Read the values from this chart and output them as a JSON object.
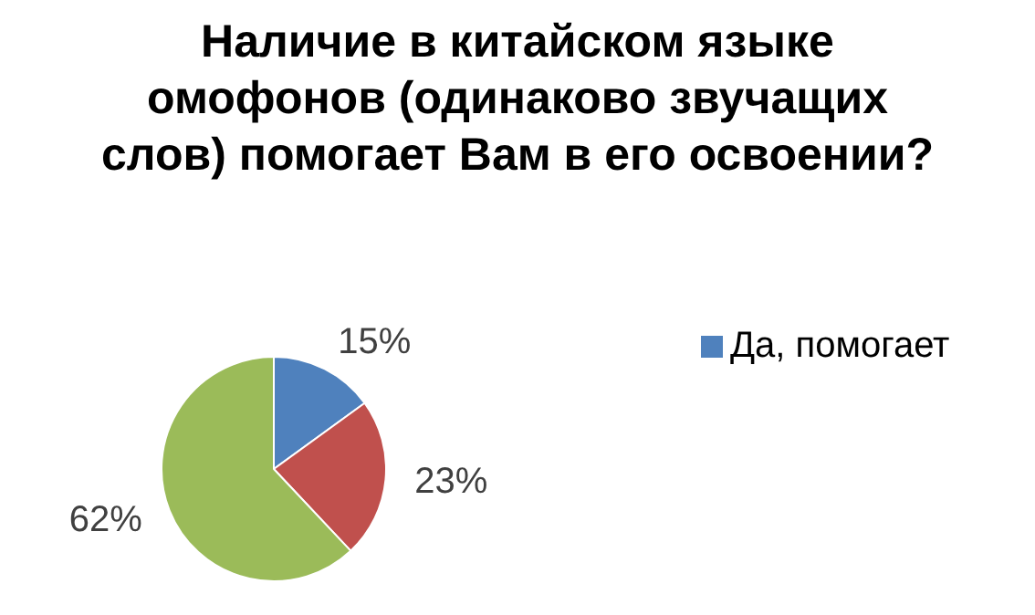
{
  "chart_data": {
    "type": "pie",
    "title": "Наличие в китайском языке омофонов (одинаково звучащих слов) помогает Вам в его освоении?",
    "categories": [
      "Да, помогает",
      null,
      null
    ],
    "values": [
      15,
      23,
      62
    ],
    "colors": [
      "#4f81bd",
      "#c0504d",
      "#9bbb59"
    ],
    "legend": "right",
    "value_labels": [
      "15%",
      "23%",
      "62%"
    ]
  }
}
